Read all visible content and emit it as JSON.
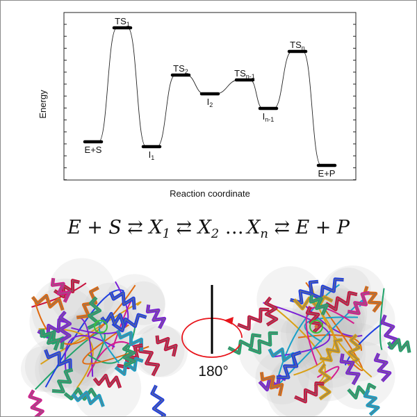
{
  "energy_diagram": {
    "y_axis_label": "Energy",
    "x_axis_label": "Reaction coordinate",
    "states": [
      {
        "main": "E+S",
        "sub": "",
        "kind": "ground"
      },
      {
        "main": "TS",
        "sub": "1",
        "kind": "transition"
      },
      {
        "main": "I",
        "sub": "1",
        "kind": "intermediate"
      },
      {
        "main": "TS",
        "sub": "2",
        "kind": "transition"
      },
      {
        "main": "I",
        "sub": "2",
        "kind": "intermediate"
      },
      {
        "main": "TS",
        "sub": "n-1",
        "kind": "transition"
      },
      {
        "main": "I",
        "sub": "n-1",
        "kind": "intermediate"
      },
      {
        "main": "TS",
        "sub": "n",
        "kind": "transition"
      },
      {
        "main": "E+P",
        "sub": "",
        "kind": "product"
      }
    ]
  },
  "equation": {
    "e1": "E",
    "plus1": "+",
    "s": "S",
    "arrow1": "⇄",
    "x1": "X",
    "x1_sub": "1",
    "arrow2": "⇄",
    "x2": "X",
    "x2_sub": "2",
    "dots": "…",
    "xn": "X",
    "xn_sub": "n",
    "arrow3": "⇄",
    "e2": "E",
    "plus2": "+",
    "p": "P"
  },
  "rotation": {
    "angle_label": "180°",
    "arrow_color": "#e8141b"
  },
  "protein_colors": [
    "#7a1fd6",
    "#c8103c",
    "#1f3fe0",
    "#1fa36a",
    "#e06a10",
    "#d9a016",
    "#18a0c8",
    "#d41b8f",
    "#8a8a8a"
  ]
}
